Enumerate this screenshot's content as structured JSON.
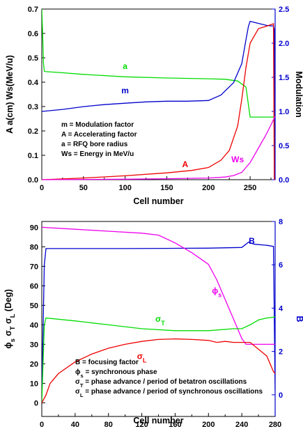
{
  "chart_data": [
    {
      "type": "line",
      "xlabel": "Cell number",
      "ylabel": "A a(cm) Ws(MeV/u)",
      "y2label": "Modulation",
      "xlim": [
        0,
        280
      ],
      "ylim": [
        0,
        0.7
      ],
      "y2lim": [
        0,
        2.5
      ],
      "xticks": [
        "0",
        "50",
        "100",
        "150",
        "200",
        "250"
      ],
      "yticks": [
        "0.0",
        "0.1",
        "0.2",
        "0.3",
        "0.4",
        "0.5",
        "0.6",
        "0.7"
      ],
      "y2ticks": [
        "0.0",
        "0.5",
        "1.0",
        "1.5",
        "2.0",
        "2.5"
      ],
      "legend_placement": "center-left",
      "legend": [
        "m  = Modulation factor",
        "A  = Accelerating factor",
        "a   = RFQ bore radius",
        "Ws = Energy in MeV/u"
      ],
      "series": [
        {
          "name": "a",
          "axis": "left",
          "color": "#00dd00",
          "x": [
            0,
            1,
            2,
            3,
            5,
            20,
            50,
            100,
            150,
            200,
            220,
            235,
            245,
            250,
            255,
            270,
            280
          ],
          "y": [
            0.7,
            0.6,
            0.48,
            0.445,
            0.443,
            0.44,
            0.432,
            0.422,
            0.417,
            0.414,
            0.412,
            0.405,
            0.38,
            0.257,
            0.257,
            0.257,
            0.257
          ]
        },
        {
          "name": "m",
          "axis": "right",
          "color": "#0000cc",
          "x": [
            0,
            25,
            50,
            75,
            100,
            125,
            150,
            175,
            200,
            215,
            230,
            240,
            245,
            248,
            250,
            260,
            270,
            278,
            279,
            280
          ],
          "y": [
            1.0,
            1.03,
            1.07,
            1.1,
            1.12,
            1.14,
            1.15,
            1.15,
            1.16,
            1.24,
            1.42,
            1.7,
            2.05,
            2.25,
            2.32,
            2.29,
            2.26,
            2.25,
            2.2,
            0.0
          ]
        },
        {
          "name": "A",
          "axis": "left",
          "color": "#ee0000",
          "x": [
            0,
            25,
            50,
            100,
            150,
            180,
            200,
            215,
            225,
            235,
            240,
            245,
            250,
            260,
            270,
            278,
            279
          ],
          "y": [
            0.0,
            0.003,
            0.007,
            0.016,
            0.028,
            0.038,
            0.05,
            0.08,
            0.12,
            0.22,
            0.33,
            0.46,
            0.56,
            0.62,
            0.63,
            0.64,
            0.0
          ]
        },
        {
          "name": "Ws",
          "axis": "left",
          "color": "#ee00ee",
          "x": [
            0,
            100,
            150,
            200,
            220,
            230,
            240,
            250,
            260,
            270,
            280
          ],
          "y": [
            0.0,
            0.002,
            0.004,
            0.007,
            0.011,
            0.017,
            0.03,
            0.07,
            0.13,
            0.19,
            0.26
          ]
        }
      ],
      "labels": [
        {
          "text": "a",
          "color": "#00dd00",
          "x": 100,
          "y": 0.455
        },
        {
          "text": "m",
          "color": "#0000cc",
          "x": 100,
          "y": 0.355
        },
        {
          "text": "A",
          "color": "#ee0000",
          "x": 172,
          "y": 0.052
        },
        {
          "text": "Ws",
          "color": "#ee00ee",
          "x": 235,
          "y": 0.072
        }
      ]
    },
    {
      "type": "line",
      "xlabel": "Cell number",
      "ylabel": "ϕs σT σL (Deg)",
      "y2label": "B",
      "xlim": [
        0,
        280
      ],
      "ylim": [
        -7,
        93
      ],
      "y2lim": [
        -1,
        8
      ],
      "xticks": [
        "0",
        "40",
        "80",
        "120",
        "160",
        "200",
        "240",
        "280"
      ],
      "yticks": [
        "0",
        "10",
        "20",
        "30",
        "40",
        "50",
        "60",
        "70",
        "80",
        "90"
      ],
      "y2ticks": [
        "0",
        "2",
        "4",
        "6",
        "8"
      ],
      "legend_placement": "bottom-center",
      "legend": [
        "B = focusing factor",
        "ϕs = synchronous phase",
        "σT = phase advance / period of betatron oscillations",
        "σL = phase advance / period of synchronous oscillations"
      ],
      "series": [
        {
          "name": "B",
          "axis": "right",
          "color": "#0000cc",
          "x": [
            0,
            3,
            5,
            50,
            100,
            150,
            200,
            240,
            245,
            248,
            255,
            270,
            278,
            280
          ],
          "y": [
            0.0,
            6.0,
            6.75,
            6.75,
            6.75,
            6.76,
            6.77,
            6.8,
            6.95,
            7.05,
            6.95,
            6.9,
            6.85,
            0.2
          ]
        },
        {
          "name": "ϕs",
          "axis": "left",
          "color": "#ee00ee",
          "x": [
            0,
            40,
            80,
            120,
            140,
            160,
            180,
            200,
            210,
            220,
            230,
            240,
            245,
            250,
            280
          ],
          "y": [
            90,
            89,
            88,
            87,
            86,
            82,
            77,
            71,
            63,
            53,
            43,
            33,
            30,
            30,
            30
          ]
        },
        {
          "name": "σT",
          "axis": "left",
          "color": "#00dd00",
          "x": [
            0,
            3,
            5,
            40,
            80,
            120,
            160,
            200,
            230,
            240,
            250,
            260,
            270,
            280
          ],
          "y": [
            0,
            40,
            43.5,
            42,
            40,
            38,
            37,
            37,
            38,
            38,
            40,
            42.5,
            43.5,
            44
          ]
        },
        {
          "name": "σL",
          "axis": "left",
          "color": "#ee0000",
          "x": [
            0,
            5,
            10,
            20,
            40,
            60,
            80,
            100,
            120,
            140,
            160,
            180,
            200,
            210,
            220,
            230,
            250,
            270,
            278,
            280
          ],
          "y": [
            0,
            4,
            10,
            15,
            21,
            25,
            28,
            30,
            31.5,
            32.5,
            32.8,
            32.5,
            32,
            31,
            31.5,
            31,
            31,
            24,
            16,
            15
          ]
        }
      ],
      "labels": [
        {
          "text": "B",
          "color": "#0000cc",
          "x": 252,
          "y": 81.5
        },
        {
          "text": "ϕs",
          "color": "#ee00ee",
          "x": 210,
          "y": 56
        },
        {
          "text": "σT",
          "color": "#00dd00",
          "x": 142,
          "y": 41.5
        },
        {
          "text": "σL",
          "color": "#ee0000",
          "x": 120,
          "y": 22.5
        }
      ]
    }
  ]
}
